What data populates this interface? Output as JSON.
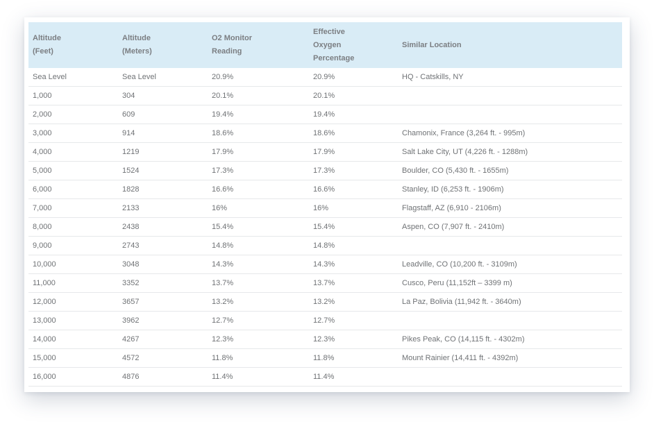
{
  "table": {
    "headers": [
      [
        "Altitude",
        "(Feet)"
      ],
      [
        "Altitude",
        "(Meters)"
      ],
      [
        "O2 Monitor",
        "Reading"
      ],
      [
        "Effective",
        "Oxygen",
        "Percentage"
      ],
      [
        "Similar Location"
      ]
    ],
    "rows": [
      [
        "Sea Level",
        "Sea Level",
        "20.9%",
        "20.9%",
        "HQ - Catskills, NY"
      ],
      [
        "1,000",
        "304",
        "20.1%",
        "20.1%",
        ""
      ],
      [
        "2,000",
        "609",
        "19.4%",
        "19.4%",
        ""
      ],
      [
        "3,000",
        "914",
        "18.6%",
        "18.6%",
        "Chamonix, France (3,264 ft. - 995m)"
      ],
      [
        "4,000",
        "1219",
        "17.9%",
        "17.9%",
        "Salt Lake City, UT (4,226 ft. - 1288m)"
      ],
      [
        "5,000",
        "1524",
        "17.3%",
        "17.3%",
        "Boulder, CO (5,430 ft. - 1655m)"
      ],
      [
        "6,000",
        "1828",
        "16.6%",
        "16.6%",
        "Stanley, ID (6,253 ft. - 1906m)"
      ],
      [
        "7,000",
        "2133",
        "16%",
        "16%",
        "Flagstaff, AZ (6,910 - 2106m)"
      ],
      [
        "8,000",
        "2438",
        "15.4%",
        "15.4%",
        "Aspen, CO (7,907 ft. - 2410m)"
      ],
      [
        "9,000",
        "2743",
        "14.8%",
        "14.8%",
        ""
      ],
      [
        "10,000",
        "3048",
        "14.3%",
        "14.3%",
        "Leadville, CO (10,200 ft. - 3109m)"
      ],
      [
        "11,000",
        "3352",
        "13.7%",
        "13.7%",
        "Cusco, Peru (11,152ft – 3399 m)"
      ],
      [
        "12,000",
        "3657",
        "13.2%",
        "13.2%",
        "La Paz, Bolivia (11,942 ft. - 3640m)"
      ],
      [
        "13,000",
        "3962",
        "12.7%",
        "12.7%",
        ""
      ],
      [
        "14,000",
        "4267",
        "12.3%",
        "12.3%",
        "Pikes Peak, CO (14,115 ft. - 4302m)"
      ],
      [
        "15,000",
        "4572",
        "11.8%",
        "11.8%",
        "Mount Rainier (14,411 ft. - 4392m)"
      ],
      [
        "16,000",
        "4876",
        "11.4%",
        "11.4%",
        ""
      ]
    ]
  }
}
